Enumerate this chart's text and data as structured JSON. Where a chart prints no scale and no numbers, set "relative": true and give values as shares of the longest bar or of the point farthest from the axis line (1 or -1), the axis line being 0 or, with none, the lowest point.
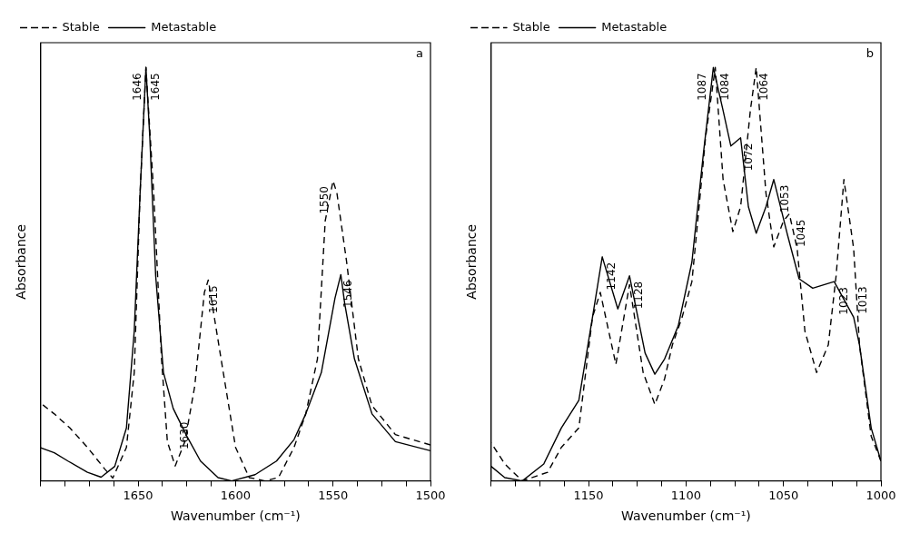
{
  "chart_data": [
    {
      "type": "line",
      "xlabel": "Wavenumber (cm⁻¹)",
      "ylabel": "Absorbance",
      "relative": true,
      "legend": "top left",
      "xlim": [
        1700,
        1500
      ],
      "xticks": [
        1500,
        {
          "value": 1512.5,
          "label": null
        },
        {
          "value": 1525,
          "label": null
        },
        {
          "value": 1537.5,
          "label": null
        },
        1550,
        {
          "value": 1562.5,
          "label": null
        },
        {
          "value": 1575,
          "label": null
        },
        {
          "value": 1587.5,
          "label": null
        },
        1600,
        {
          "value": 1612.5,
          "label": null
        },
        {
          "value": 1625,
          "label": null
        },
        {
          "value": 1637.5,
          "label": null
        },
        1650,
        {
          "value": 1662.5,
          "label": null
        },
        {
          "value": 1675,
          "label": null
        },
        {
          "value": 1687.5,
          "label": null
        },
        {
          "value": 1700,
          "label": null
        }
      ],
      "series": [
        {
          "name": "Stable",
          "color": "#000000",
          "line_style": "dashed",
          "x": [
            1500,
            1518,
            1530,
            1537,
            1543,
            1548,
            1550,
            1554,
            1558,
            1564,
            1570,
            1578,
            1585,
            1593,
            1600,
            1607,
            1614,
            1616,
            1621,
            1626,
            1631,
            1635,
            1638,
            1642,
            1646,
            1649,
            1652,
            1656,
            1663,
            1667,
            1676,
            1685,
            1693,
            1700
          ],
          "values": [
            0.087,
            0.112,
            0.182,
            0.295,
            0.529,
            0.696,
            0.726,
            0.629,
            0.295,
            0.162,
            0.081,
            0.008,
            0,
            0.008,
            0.081,
            0.282,
            0.486,
            0.456,
            0.228,
            0.095,
            0.036,
            0.095,
            0.295,
            0.696,
            1,
            0.696,
            0.262,
            0.081,
            0.007,
            0.028,
            0.081,
            0.128,
            0.162,
            0.188
          ]
        },
        {
          "name": "Metastable",
          "color": "#000000",
          "line_style": "solid",
          "x": [
            1500,
            1518,
            1530,
            1539,
            1544,
            1546,
            1549,
            1556,
            1564,
            1570,
            1579,
            1590,
            1602,
            1609,
            1618,
            1625,
            1632,
            1637,
            1641,
            1644,
            1646,
            1649,
            1652,
            1656,
            1662,
            1669,
            1676,
            1686,
            1693,
            1700
          ],
          "values": [
            0.073,
            0.095,
            0.162,
            0.295,
            0.429,
            0.499,
            0.442,
            0.262,
            0.162,
            0.1,
            0.048,
            0.015,
            0,
            0.008,
            0.048,
            0.108,
            0.175,
            0.262,
            0.496,
            0.83,
            1,
            0.696,
            0.362,
            0.128,
            0.035,
            0.009,
            0.021,
            0.048,
            0.068,
            0.08
          ]
        }
      ],
      "annotations": [
        "a",
        {
          "text": "1546",
          "x": 1546,
          "y": 0.499
        },
        {
          "text": "1550",
          "x": 1550,
          "y": 0.726
        },
        {
          "text": "1615",
          "x": 1615,
          "y": 0.486
        },
        {
          "text": "1630",
          "x": 1630,
          "y": 0.156
        },
        {
          "text": "1645",
          "x": 1645,
          "y": 1
        },
        {
          "text": "1646",
          "x": 1646,
          "y": 1
        }
      ]
    },
    {
      "type": "line",
      "xlabel": "Wavenumber (cm⁻¹)",
      "ylabel": "Absorbance",
      "relative": true,
      "legend": "top left",
      "xlim": [
        1200,
        1000
      ],
      "xticks": [
        1000,
        {
          "value": 1012.5,
          "label": null
        },
        {
          "value": 1025,
          "label": null
        },
        {
          "value": 1037.5,
          "label": null
        },
        1050,
        {
          "value": 1062.5,
          "label": null
        },
        {
          "value": 1075,
          "label": null
        },
        {
          "value": 1087.5,
          "label": null
        },
        1100,
        {
          "value": 1112.5,
          "label": null
        },
        {
          "value": 1125,
          "label": null
        },
        {
          "value": 1137.5,
          "label": null
        },
        1150,
        {
          "value": 1162.5,
          "label": null
        },
        {
          "value": 1175,
          "label": null
        },
        {
          "value": 1187.5,
          "label": null
        },
        {
          "value": 1200,
          "label": null
        }
      ],
      "series": [
        {
          "name": "Stable",
          "color": "#000000",
          "line_style": "dashed",
          "x": [
            1000,
            1005,
            1011,
            1014,
            1019,
            1023,
            1027,
            1033,
            1039,
            1043,
            1047,
            1050,
            1055,
            1059,
            1064,
            1067,
            1072,
            1076,
            1081,
            1085,
            1090,
            1094,
            1097,
            1102,
            1107,
            1111,
            1116,
            1122,
            1129,
            1136,
            1144,
            1148,
            1155,
            1164,
            1171,
            1184,
            1193,
            1200
          ],
          "values": [
            0.048,
            0.108,
            0.329,
            0.562,
            0.729,
            0.496,
            0.329,
            0.262,
            0.362,
            0.562,
            0.646,
            0.629,
            0.566,
            0.696,
            1,
            0.896,
            0.663,
            0.603,
            0.729,
            1,
            0.83,
            0.629,
            0.482,
            0.396,
            0.329,
            0.247,
            0.185,
            0.262,
            0.475,
            0.282,
            0.456,
            0.396,
            0.128,
            0.081,
            0.021,
            0,
            0.041,
            0.092
          ]
        },
        {
          "name": "Metastable",
          "color": "#000000",
          "line_style": "solid",
          "x": [
            1000,
            1005,
            1011,
            1014,
            1024,
            1035,
            1042,
            1048,
            1055,
            1059,
            1064,
            1068,
            1072,
            1077,
            1081,
            1086,
            1091,
            1097,
            1104,
            1111,
            1116,
            1121,
            1129,
            1135,
            1143,
            1148,
            1155,
            1164,
            1173,
            1184,
            1193,
            1200
          ],
          "values": [
            0.048,
            0.128,
            0.329,
            0.396,
            0.482,
            0.466,
            0.489,
            0.596,
            0.729,
            0.663,
            0.599,
            0.663,
            0.83,
            0.81,
            0.896,
            1,
            0.796,
            0.529,
            0.375,
            0.295,
            0.258,
            0.309,
            0.496,
            0.416,
            0.542,
            0.396,
            0.195,
            0.128,
            0.041,
            0,
            0.008,
            0.035
          ]
        }
      ],
      "annotations": [
        "b",
        {
          "text": "1013",
          "x": 1013,
          "y": 0.484
        },
        {
          "text": "1023",
          "x": 1023,
          "y": 0.482
        },
        {
          "text": "1045",
          "x": 1045,
          "y": 0.646
        },
        {
          "text": "1053",
          "x": 1053,
          "y": 0.729
        },
        {
          "text": "1064",
          "x": 1064,
          "y": 1
        },
        {
          "text": "1072",
          "x": 1072,
          "y": 0.83
        },
        {
          "text": "1084",
          "x": 1084,
          "y": 1
        },
        {
          "text": "1087",
          "x": 1087,
          "y": 1
        },
        {
          "text": "1128",
          "x": 1128,
          "y": 0.496
        },
        {
          "text": "1142",
          "x": 1142,
          "y": 0.542
        }
      ]
    }
  ]
}
